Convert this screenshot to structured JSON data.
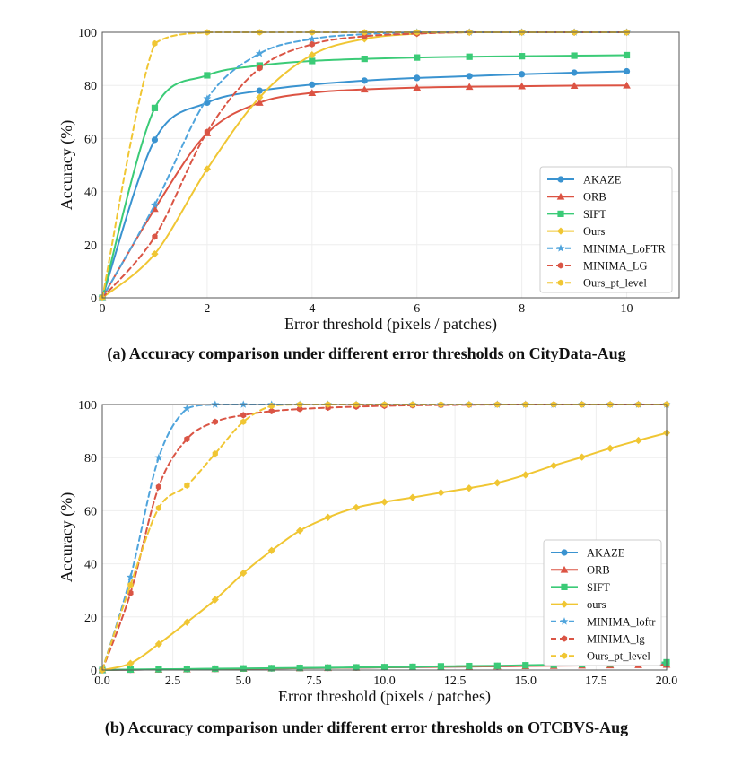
{
  "colors": {
    "AKAZE": "#3a93d0",
    "ORB": "#dc5343",
    "SIFT": "#3bcb77",
    "Ours": "#f0c633",
    "MINIMA_LoFTR": "#4fa4dc",
    "MINIMA_LG": "#da5545",
    "Ours_pt_level": "#f0c633"
  },
  "chart_data": [
    {
      "type": "line",
      "caption": "(a) Accuracy comparison under different error thresholds on CityData-Aug",
      "xlabel": "Error threshold (pixels / patches)",
      "ylabel": "Accuracy (%)",
      "xlim": [
        0,
        11
      ],
      "ylim": [
        0,
        100
      ],
      "xticks": [
        0,
        2,
        4,
        6,
        8,
        10
      ],
      "xtick_labels": [
        "0",
        "2",
        "4",
        "6",
        "8",
        "10"
      ],
      "yticks": [
        0,
        20,
        40,
        60,
        80,
        100
      ],
      "grid": true,
      "legend_position": "lower-right",
      "x": [
        0,
        1,
        2,
        3,
        4,
        5,
        6,
        7,
        8,
        9,
        10
      ],
      "series": [
        {
          "name": "AKAZE",
          "style": "solid",
          "marker": "circle",
          "values": [
            0,
            59.5,
            73.5,
            78,
            80.3,
            81.8,
            82.8,
            83.5,
            84.2,
            84.8,
            85.3
          ]
        },
        {
          "name": "ORB",
          "style": "solid",
          "marker": "triangle",
          "values": [
            0,
            33.5,
            62,
            73.5,
            77.2,
            78.5,
            79.2,
            79.5,
            79.7,
            79.9,
            80
          ]
        },
        {
          "name": "SIFT",
          "style": "solid",
          "marker": "square",
          "values": [
            0,
            71.5,
            83.8,
            87.5,
            89.2,
            90,
            90.5,
            90.8,
            91,
            91.2,
            91.4
          ]
        },
        {
          "name": "Ours",
          "style": "solid",
          "marker": "diamond",
          "values": [
            0,
            16.5,
            48.5,
            75.5,
            91.5,
            97.5,
            99.5,
            100,
            100,
            100,
            100
          ]
        },
        {
          "name": "MINIMA_LoFTR",
          "style": "dashed",
          "marker": "star",
          "values": [
            0,
            35,
            75,
            92,
            97.5,
            99.3,
            100,
            100,
            100,
            100,
            100
          ]
        },
        {
          "name": "MINIMA_LG",
          "style": "dashed",
          "marker": "hexagon",
          "values": [
            0,
            23,
            62.5,
            86.5,
            95.5,
            98.5,
            99.5,
            100,
            100,
            100,
            100
          ]
        },
        {
          "name": "Ours_pt_level",
          "style": "dashed",
          "marker": "hexagon",
          "values": [
            0,
            95.8,
            100,
            100,
            100,
            100,
            100,
            100,
            100,
            100,
            100
          ]
        }
      ]
    },
    {
      "type": "line",
      "caption": "(b) Accuracy comparison under different error thresholds on OTCBVS-Aug",
      "xlabel": "Error threshold (pixels / patches)",
      "ylabel": "Accuracy (%)",
      "xlim": [
        0,
        20
      ],
      "ylim": [
        0,
        100
      ],
      "xticks": [
        0,
        2.5,
        5,
        7.5,
        10,
        12.5,
        15,
        17.5,
        20
      ],
      "xtick_labels": [
        "0.0",
        "2.5",
        "5.0",
        "7.5",
        "10.0",
        "12.5",
        "15.0",
        "17.5",
        "20.0"
      ],
      "yticks": [
        0,
        20,
        40,
        60,
        80,
        100
      ],
      "grid": true,
      "legend_position": "lower-right",
      "x": [
        0,
        1,
        2,
        3,
        4,
        5,
        6,
        7,
        8,
        9,
        10,
        11,
        12,
        13,
        14,
        15,
        16,
        17,
        18,
        19,
        20
      ],
      "series": [
        {
          "name": "AKAZE",
          "style": "solid",
          "marker": "circle",
          "values": [
            0,
            0.1,
            0.2,
            0.3,
            0.4,
            0.5,
            0.6,
            0.7,
            0.8,
            0.9,
            1.0,
            1.1,
            1.2,
            1.3,
            1.4,
            1.6,
            1.8,
            2.0,
            2.2,
            2.4,
            2.6
          ]
        },
        {
          "name": "ORB",
          "style": "solid",
          "marker": "triangle",
          "values": [
            0,
            0.1,
            0.2,
            0.3,
            0.4,
            0.5,
            0.6,
            0.7,
            0.8,
            0.9,
            1.0,
            1.1,
            1.2,
            1.3,
            1.4,
            1.5,
            1.6,
            1.7,
            1.8,
            1.9,
            2.0
          ]
        },
        {
          "name": "SIFT",
          "style": "solid",
          "marker": "square",
          "values": [
            0,
            0.2,
            0.3,
            0.4,
            0.5,
            0.6,
            0.7,
            0.8,
            0.9,
            1.0,
            1.1,
            1.2,
            1.4,
            1.5,
            1.6,
            1.8,
            2.0,
            2.2,
            2.4,
            2.6,
            2.9
          ]
        },
        {
          "name": "ours",
          "style": "solid",
          "marker": "diamond",
          "values": [
            0,
            2.5,
            9.8,
            18,
            26.5,
            36.5,
            45,
            52.5,
            57.5,
            61.2,
            63.3,
            65,
            66.8,
            68.5,
            70.5,
            73.5,
            77,
            80.2,
            83.5,
            86.5,
            89.3
          ]
        },
        {
          "name": "MINIMA_loftr",
          "style": "dashed",
          "marker": "star",
          "values": [
            0,
            35,
            80,
            98.5,
            100,
            100,
            100,
            100,
            100,
            100,
            100,
            100,
            100,
            100,
            100,
            100,
            100,
            100,
            100,
            100,
            100
          ]
        },
        {
          "name": "MINIMA_lg",
          "style": "dashed",
          "marker": "hexagon",
          "values": [
            0,
            29,
            69,
            87,
            93.5,
            96,
            97.5,
            98.3,
            98.8,
            99.2,
            99.5,
            99.7,
            99.8,
            99.9,
            100,
            100,
            100,
            100,
            100,
            100,
            100
          ]
        },
        {
          "name": "Ours_pt_level",
          "style": "dashed",
          "marker": "hexagon",
          "values": [
            0,
            32,
            61,
            69.5,
            81.5,
            93.5,
            99.5,
            100,
            100,
            100,
            100,
            100,
            100,
            100,
            100,
            100,
            100,
            100,
            100,
            100,
            100
          ]
        }
      ]
    }
  ]
}
